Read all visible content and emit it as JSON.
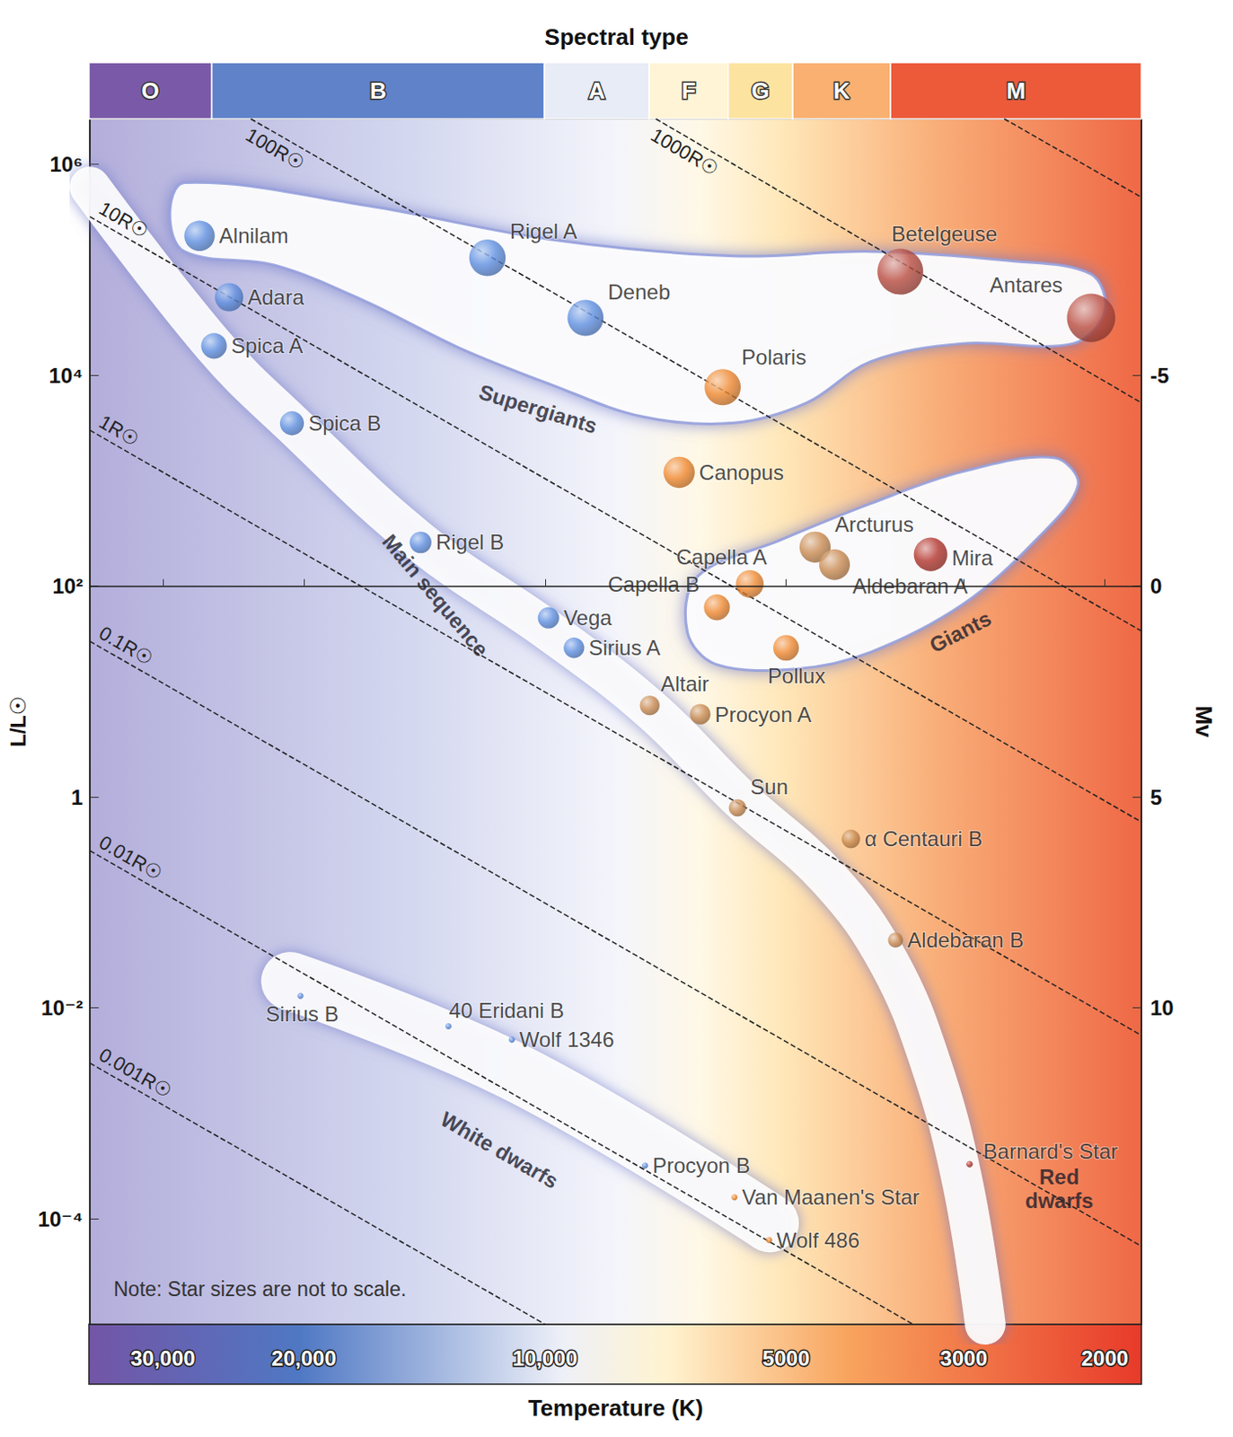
{
  "chart_data": {
    "type": "scatter",
    "log": true,
    "grid": false,
    "xlabel": "Temperature (K)",
    "ylabel": "L/L☉",
    "y2label": "Mv",
    "xlim": [
      37000,
      1800
    ],
    "xticks": [
      {
        "value": 30000,
        "label": "30,000"
      },
      {
        "value": 20000,
        "label": "20,000"
      },
      {
        "value": 10000,
        "label": "10,000"
      },
      5000,
      3000,
      2000
    ],
    "ylim": [
      1e-05,
      2700000
    ],
    "yticks": [
      {
        "value": 0.0001,
        "label": "10⁻⁴"
      },
      {
        "value": 0.01,
        "label": "10⁻²"
      },
      1,
      {
        "value": 100,
        "label": "10²"
      },
      {
        "value": 10000,
        "label": "10⁴"
      },
      {
        "value": 1000000,
        "label": "10⁶"
      }
    ],
    "y2lim": [
      17.5,
      -11.08
    ],
    "y2ticks": [
      10,
      5,
      0,
      -5
    ],
    "spectral_types": {
      "title": "Spectral type",
      "classes": [
        {
          "label": "O",
          "from": 37000,
          "to": 26000,
          "color": "#7a5aa8"
        },
        {
          "label": "B",
          "from": 26000,
          "to": 10000,
          "color": "#5f82c9"
        },
        {
          "label": "A",
          "from": 10000,
          "to": 7400,
          "color": "#e8ecf6"
        },
        {
          "label": "F",
          "from": 7400,
          "to": 5900,
          "color": "#fff4d6"
        },
        {
          "label": "G",
          "from": 5900,
          "to": 4900,
          "color": "#fde3a0"
        },
        {
          "label": "K",
          "from": 4900,
          "to": 3700,
          "color": "#f9b070"
        },
        {
          "label": "M",
          "from": 3700,
          "to": 1800,
          "color": "#ec5a3a"
        }
      ]
    },
    "stars": {
      "names": [
        "Alnilam",
        "Adara",
        "Spica A",
        "Spica B",
        "Rigel A",
        "Deneb",
        "Polaris",
        "Betelgeuse",
        "Antares",
        "Canopus",
        "Arcturus",
        "Aldebaran A",
        "Mira",
        "Capella A",
        "Capella B",
        "Pollux",
        "Rigel B",
        "Vega",
        "Sirius A",
        "Altair",
        "Procyon A",
        "Sun",
        "α Centauri B",
        "Aldebaran B",
        "Barnard's Star",
        "Sirius B",
        "40 Eridani B",
        "Wolf 1346",
        "Procyon B",
        "Van Maanen's Star",
        "Wolf 486"
      ],
      "x": [
        27000,
        24800,
        25900,
        20700,
        11800,
        8900,
        6000,
        3600,
        2080,
        6800,
        4600,
        4350,
        3300,
        5550,
        6100,
        5000,
        14300,
        9900,
        9200,
        7400,
        6400,
        5750,
        4150,
        3650,
        2950,
        20200,
        13200,
        11000,
        7500,
        5800,
        5250
      ],
      "y": [
        210000,
        55000,
        19000,
        3500,
        130000,
        35000,
        7700,
        96000,
        35000,
        1200,
        235,
        160,
        200,
        105,
        63,
        26,
        260,
        50,
        26,
        7.4,
        6.1,
        0.79,
        0.4,
        0.044,
        0.00033,
        0.013,
        0.0067,
        0.005,
        0.00032,
        0.00016,
        6.3e-05
      ],
      "colors": [
        "#5d8ee0",
        "#5d8ee0",
        "#5d8ee0",
        "#5d8ee0",
        "#5d8ee0",
        "#5d8ee0",
        "#f0882e",
        "#b84a3e",
        "#b84a3e",
        "#f0882e",
        "#c98a50",
        "#c98a50",
        "#b3322a",
        "#f0882e",
        "#f0882e",
        "#f0882e",
        "#5d8ee0",
        "#5d8ee0",
        "#5d8ee0",
        "#c98a50",
        "#c98a50",
        "#c98a50",
        "#c98a50",
        "#c98a50",
        "#b3322a",
        "#5d8ee0",
        "#5d8ee0",
        "#5d8ee0",
        "#5d8ee0",
        "#f0882e",
        "#f0882e"
      ]
    },
    "radius_lines": [
      {
        "x": [
          2670,
          1800
        ],
        "y": [
          2700000,
          487000
        ]
      },
      {
        "label": "1000R☉",
        "x": [
          7270,
          1800
        ],
        "y": [
          2700000,
          5480
        ]
      },
      {
        "label": "100R☉",
        "x": [
          23300,
          1800
        ],
        "y": [
          2700000,
          37.5
        ]
      },
      {
        "label": "10R☉",
        "x": [
          37000,
          1800
        ],
        "y": [
          319000,
          0.58
        ]
      },
      {
        "label": "1R☉",
        "x": [
          37000,
          1800
        ],
        "y": [
          3010,
          0.0055
        ]
      },
      {
        "label": "0.1R☉",
        "x": [
          37000,
          1800
        ],
        "y": [
          30,
          5.5e-05
        ]
      },
      {
        "label": "0.01R☉",
        "x": [
          37000,
          3470
        ],
        "y": [
          0.31,
          1e-05
        ]
      },
      {
        "label": "0.001R☉",
        "x": [
          37000,
          10000
        ],
        "y": [
          0.003,
          1e-05
        ]
      }
    ],
    "regions": [
      {
        "name": "Supergiants",
        "type": "area",
        "outline": [
          [
            28200,
            670000
          ],
          [
            16700,
            406000
          ],
          [
            9840,
            194000
          ],
          [
            5810,
            135000
          ],
          [
            3920,
            149000
          ],
          [
            2640,
            122000
          ],
          [
            2080,
            91000
          ],
          [
            2000,
            40600
          ],
          [
            2190,
            20000
          ],
          [
            3010,
            20000
          ],
          [
            3920,
            13500
          ],
          [
            4710,
            5480
          ],
          [
            5810,
            3530
          ],
          [
            7570,
            4060
          ],
          [
            9840,
            8190
          ],
          [
            12800,
            18200
          ],
          [
            16700,
            49600
          ],
          [
            21700,
            110000
          ],
          [
            28200,
            149000
          ],
          [
            29400,
            333000
          ]
        ],
        "label_at": [
          10200,
          4800
        ]
      },
      {
        "name": "Giants",
        "type": "area",
        "outline": [
          [
            6460,
            122
          ],
          [
            5090,
            272
          ],
          [
            3920,
            607
          ],
          [
            3010,
            1220
          ],
          [
            2310,
            1650
          ],
          [
            2160,
            905
          ],
          [
            2440,
            272
          ],
          [
            3010,
            67
          ],
          [
            3920,
            23.7
          ],
          [
            4830,
            16.5
          ],
          [
            6120,
            18.2
          ],
          [
            6640,
            36.7
          ]
        ],
        "label_at": [
          3030,
          37
        ]
      },
      {
        "name": "Main sequence",
        "type": "band",
        "path": [
          [
            37000,
            610000
          ],
          [
            25900,
            19000
          ],
          [
            20700,
            3460
          ],
          [
            14300,
            261
          ],
          [
            9840,
            36.7
          ],
          [
            7370,
            6.7
          ],
          [
            5740,
            1.0
          ],
          [
            4410,
            0.165
          ],
          [
            3720,
            0.027
          ],
          [
            3300,
            0.003
          ],
          [
            3010,
            0.00022
          ],
          [
            2820,
            1e-05
          ]
        ],
        "label_at": [
          13700,
          82
        ]
      },
      {
        "name": "White dwarfs",
        "type": "band",
        "path": [
          [
            20800,
            0.018
          ],
          [
            10900,
            0.00246
          ],
          [
            5240,
            9.1e-05
          ]
        ],
        "label_at": [
          11400,
          0.00045
        ]
      },
      {
        "name": "Red dwarfs",
        "type": "label",
        "label_at": [
          2280,
          0.000194
        ]
      }
    ],
    "note": "Note: Star sizes are not to scale."
  }
}
